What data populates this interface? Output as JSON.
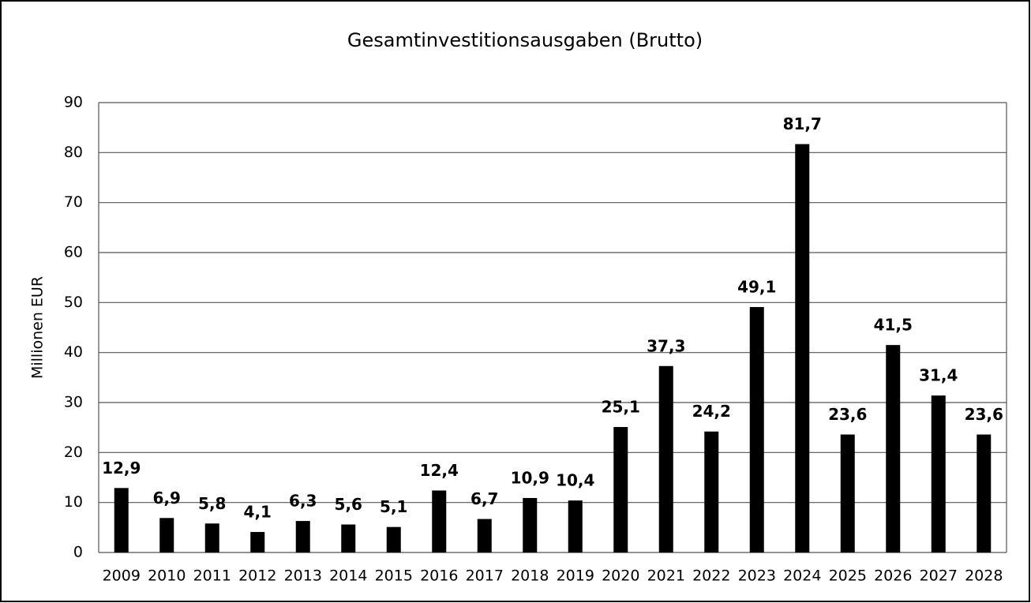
{
  "chart_data": {
    "type": "bar",
    "title": "Gesamtinvestitionsausgaben (Brutto)",
    "y_label": "Millionen EUR",
    "categories": [
      "2009",
      "2010",
      "2011",
      "2012",
      "2013",
      "2014",
      "2015",
      "2016",
      "2017",
      "2018",
      "2019",
      "2020",
      "2021",
      "2022",
      "2023",
      "2024",
      "2025",
      "2026",
      "2027",
      "2028"
    ],
    "values": [
      12.9,
      6.9,
      5.8,
      4.1,
      6.3,
      5.6,
      5.1,
      12.4,
      6.7,
      10.9,
      10.4,
      25.1,
      37.3,
      24.2,
      49.1,
      81.7,
      23.6,
      41.5,
      31.4,
      23.6
    ],
    "value_labels": [
      "12,9",
      "6,9",
      "5,8",
      "4,1",
      "6,3",
      "5,6",
      "5,1",
      "12,4",
      "6,7",
      "10,9",
      "10,4",
      "25,1",
      "37,3",
      "24,2",
      "49,1",
      "81,7",
      "23,6",
      "41,5",
      "31,4",
      "23,6"
    ],
    "color": "#000000",
    "ylim": [
      0,
      90
    ],
    "yticks": [
      0,
      10,
      20,
      30,
      40,
      50,
      60,
      70,
      80,
      90
    ],
    "grid": true
  }
}
